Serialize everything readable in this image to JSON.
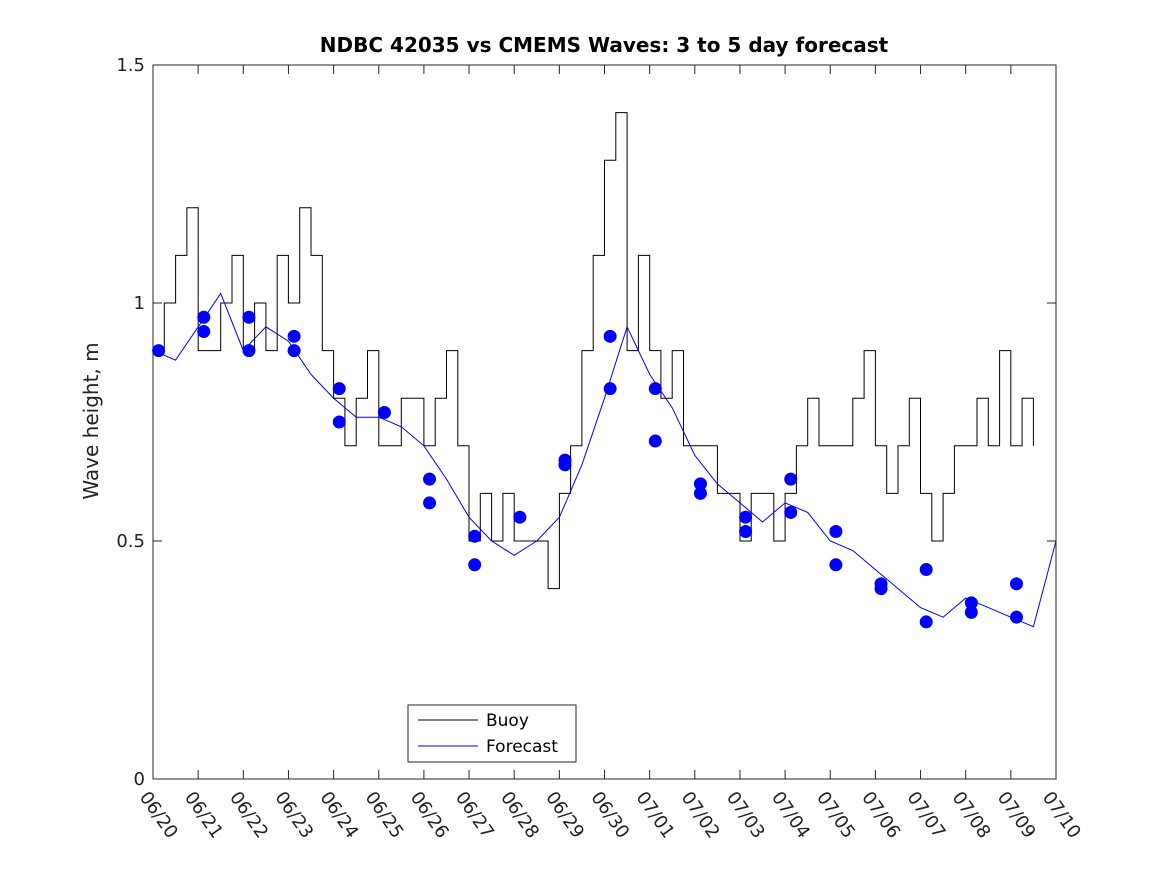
{
  "chart_data": {
    "type": "line",
    "title": "NDBC 42035 vs CMEMS Waves: 3 to 5 day forecast",
    "xlabel": "",
    "ylabel": "Wave height, m",
    "ylim": [
      0,
      1.5
    ],
    "yticks": [
      "0",
      "0.5",
      "1",
      "1.5"
    ],
    "xlim": [
      "2020-06-20",
      "2020-07-10"
    ],
    "xtick_labels": [
      "06/20",
      "06/21",
      "06/22",
      "06/23",
      "06/24",
      "06/25",
      "06/26",
      "06/27",
      "06/28",
      "06/29",
      "06/30",
      "07/01",
      "07/02",
      "07/03",
      "07/04",
      "07/05",
      "07/06",
      "07/07",
      "07/08",
      "07/09",
      "07/10"
    ],
    "grid": false,
    "legend_position": "bottom-center",
    "legend": [
      "Buoy",
      "Forecast"
    ],
    "colors": {
      "buoy": "#000000",
      "forecast": "#0000ff"
    },
    "series": [
      {
        "name": "Buoy",
        "style": "step",
        "x": [
          "06/20 00:00",
          "06/20 06:00",
          "06/20 12:00",
          "06/20 18:00",
          "06/21 00:00",
          "06/21 06:00",
          "06/21 12:00",
          "06/21 18:00",
          "06/22 00:00",
          "06/22 06:00",
          "06/22 12:00",
          "06/22 18:00",
          "06/23 00:00",
          "06/23 06:00",
          "06/23 12:00",
          "06/23 18:00",
          "06/24 00:00",
          "06/24 06:00",
          "06/24 12:00",
          "06/24 18:00",
          "06/25 00:00",
          "06/25 06:00",
          "06/25 12:00",
          "06/25 18:00",
          "06/26 00:00",
          "06/26 06:00",
          "06/26 12:00",
          "06/26 18:00",
          "06/27 00:00",
          "06/27 06:00",
          "06/27 12:00",
          "06/27 18:00",
          "06/28 00:00",
          "06/28 06:00",
          "06/28 12:00",
          "06/28 18:00",
          "06/29 00:00",
          "06/29 06:00",
          "06/29 12:00",
          "06/29 18:00",
          "06/30 00:00",
          "06/30 06:00",
          "06/30 12:00",
          "06/30 18:00",
          "07/01 00:00",
          "07/01 06:00",
          "07/01 12:00",
          "07/01 18:00",
          "07/02 00:00",
          "07/02 06:00",
          "07/02 12:00",
          "07/02 18:00",
          "07/03 00:00",
          "07/03 06:00",
          "07/03 12:00",
          "07/03 18:00",
          "07/04 00:00",
          "07/04 06:00",
          "07/04 12:00",
          "07/04 18:00",
          "07/05 00:00",
          "07/05 06:00",
          "07/05 12:00",
          "07/05 18:00",
          "07/06 00:00",
          "07/06 06:00",
          "07/06 12:00",
          "07/06 18:00",
          "07/07 00:00",
          "07/07 06:00",
          "07/07 12:00",
          "07/07 18:00",
          "07/08 00:00",
          "07/08 06:00",
          "07/08 12:00",
          "07/08 18:00",
          "07/09 00:00",
          "07/09 06:00",
          "07/09 12:00"
        ],
        "y": [
          0.9,
          1.0,
          1.1,
          1.2,
          0.9,
          0.9,
          1.0,
          1.1,
          0.9,
          1.0,
          0.9,
          1.1,
          1.0,
          1.2,
          1.1,
          0.9,
          0.8,
          0.7,
          0.8,
          0.9,
          0.7,
          0.7,
          0.8,
          0.8,
          0.7,
          0.8,
          0.9,
          0.7,
          0.5,
          0.6,
          0.5,
          0.6,
          0.5,
          0.5,
          0.5,
          0.4,
          0.6,
          0.7,
          0.9,
          1.1,
          1.3,
          1.4,
          0.9,
          1.1,
          0.9,
          0.8,
          0.9,
          0.7,
          0.7,
          0.7,
          0.6,
          0.6,
          0.5,
          0.6,
          0.6,
          0.5,
          0.6,
          0.7,
          0.8,
          0.7,
          0.7,
          0.7,
          0.8,
          0.9,
          0.7,
          0.6,
          0.7,
          0.8,
          0.6,
          0.5,
          0.6,
          0.7,
          0.7,
          0.8,
          0.7,
          0.9,
          0.7,
          0.8,
          0.7
        ]
      },
      {
        "name": "Forecast",
        "style": "line",
        "x": [
          "06/20 00:00",
          "06/20 12:00",
          "06/21 00:00",
          "06/21 12:00",
          "06/22 00:00",
          "06/22 12:00",
          "06/23 00:00",
          "06/23 12:00",
          "06/24 00:00",
          "06/24 12:00",
          "06/25 00:00",
          "06/25 12:00",
          "06/26 00:00",
          "06/26 12:00",
          "06/27 00:00",
          "06/27 12:00",
          "06/28 00:00",
          "06/28 12:00",
          "06/29 00:00",
          "06/29 12:00",
          "06/30 00:00",
          "06/30 12:00",
          "07/01 00:00",
          "07/01 12:00",
          "07/02 00:00",
          "07/02 12:00",
          "07/03 00:00",
          "07/03 12:00",
          "07/04 00:00",
          "07/04 12:00",
          "07/05 00:00",
          "07/05 12:00",
          "07/06 00:00",
          "07/06 12:00",
          "07/07 00:00",
          "07/07 12:00",
          "07/08 00:00",
          "07/08 12:00",
          "07/09 00:00",
          "07/09 12:00",
          "07/10 00:00"
        ],
        "y": [
          0.9,
          0.88,
          0.95,
          1.02,
          0.9,
          0.95,
          0.92,
          0.85,
          0.8,
          0.76,
          0.76,
          0.74,
          0.7,
          0.63,
          0.55,
          0.5,
          0.47,
          0.5,
          0.55,
          0.66,
          0.8,
          0.95,
          0.85,
          0.78,
          0.68,
          0.62,
          0.58,
          0.54,
          0.58,
          0.56,
          0.5,
          0.48,
          0.44,
          0.4,
          0.36,
          0.34,
          0.38,
          0.36,
          0.34,
          0.32,
          0.5
        ]
      }
    ],
    "forecast_markers": {
      "x": [
        "06/20 03:00",
        "06/21 03:00",
        "06/21 03:00",
        "06/22 03:00",
        "06/22 03:00",
        "06/23 03:00",
        "06/23 03:00",
        "06/24 03:00",
        "06/24 03:00",
        "06/25 03:00",
        "06/26 03:00",
        "06/26 03:00",
        "06/27 03:00",
        "06/27 03:00",
        "06/28 03:00",
        "06/29 03:00",
        "06/29 03:00",
        "06/30 03:00",
        "06/30 03:00",
        "07/01 03:00",
        "07/01 03:00",
        "07/02 03:00",
        "07/02 03:00",
        "07/03 03:00",
        "07/03 03:00",
        "07/04 03:00",
        "07/04 03:00",
        "07/05 03:00",
        "07/05 03:00",
        "07/06 03:00",
        "07/06 03:00",
        "07/07 03:00",
        "07/07 03:00",
        "07/08 03:00",
        "07/08 03:00",
        "07/09 03:00",
        "07/09 03:00"
      ],
      "y": [
        0.9,
        0.97,
        0.94,
        0.97,
        0.9,
        0.93,
        0.9,
        0.82,
        0.75,
        0.77,
        0.63,
        0.58,
        0.51,
        0.45,
        0.55,
        0.67,
        0.66,
        0.93,
        0.82,
        0.82,
        0.71,
        0.62,
        0.6,
        0.55,
        0.52,
        0.63,
        0.56,
        0.52,
        0.45,
        0.41,
        0.4,
        0.44,
        0.33,
        0.37,
        0.35,
        0.41,
        0.34
      ]
    }
  }
}
